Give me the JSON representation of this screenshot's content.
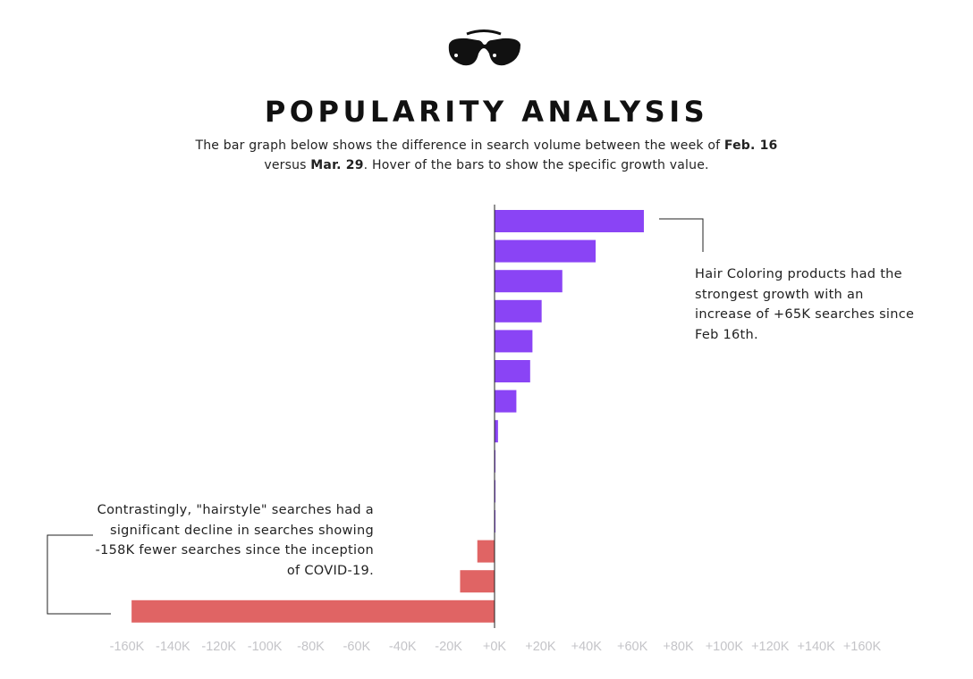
{
  "header": {
    "logo_icon": "sunglasses-icon",
    "title": "POPULARITY ANALYSIS",
    "subtitle_part1": "The bar graph below shows the difference in search volume between the week of ",
    "subtitle_bold1": "Feb. 16",
    "subtitle_part2": " versus ",
    "subtitle_bold2": "Mar. 29",
    "subtitle_part3": ". Hover of the bars to show the specific growth value."
  },
  "annotations": {
    "top": "Hair Coloring products had the strongest growth with an increase of +65K searches since Feb 16th.",
    "bottom": "Contrastingly, \"hairstyle\" searches had a significant decline in searches showing -158K fewer searches since the inception of COVID-19."
  },
  "chart_data": {
    "type": "bar",
    "orientation": "horizontal",
    "values": [
      65000,
      44000,
      29500,
      20500,
      16500,
      15500,
      9500,
      1500,
      300,
      300,
      300,
      -7500,
      -15000,
      -158000
    ],
    "x_ticks": [
      "-160K",
      "-140K",
      "-120K",
      "-100K",
      "-80K",
      "-60K",
      "-40K",
      "-20K",
      "+0K",
      "+20K",
      "+40K",
      "+60K",
      "+80K",
      "+100K",
      "+120K",
      "+140K",
      "+160K"
    ],
    "xlim": [
      -160000,
      160000
    ],
    "grid": false,
    "colors": {
      "positive": "#8a44f5",
      "negative": "#e06464",
      "axis": "#222222",
      "tick": "#c4c4c8",
      "leader": "#222222"
    }
  }
}
